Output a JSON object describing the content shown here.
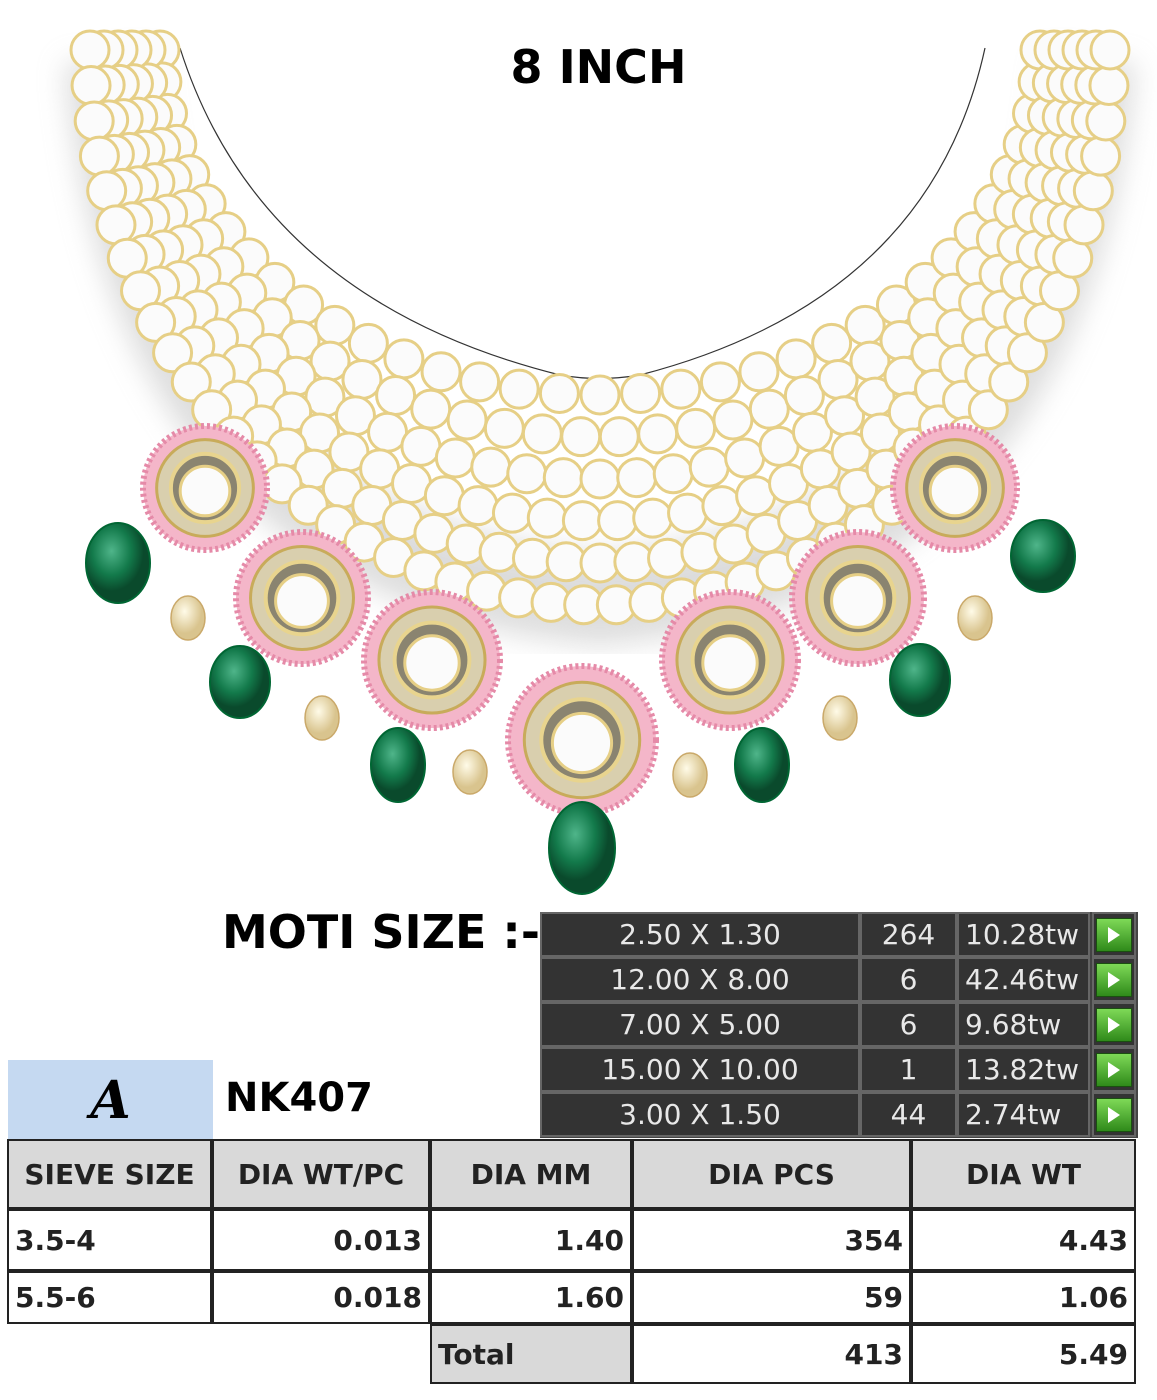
{
  "title": "8 INCH",
  "moti": {
    "label": "MOTI SIZE :-",
    "rows": [
      [
        "2.50 X 1.30",
        "264",
        "10.28tw"
      ],
      [
        "12.00 X 8.00",
        "6",
        "42.46tw"
      ],
      [
        "7.00 X 5.00",
        "6",
        "9.68tw"
      ],
      [
        "15.00 X 10.00",
        "1",
        "13.82tw"
      ],
      [
        "3.00 X 1.50",
        "44",
        "2.74tw"
      ]
    ]
  },
  "logo": "A",
  "code": "NK407",
  "table": {
    "header": [
      "SIEVE SIZE",
      "DIA WT/PC",
      "DIA MM",
      "DIA PCS",
      "DIA WT"
    ],
    "rows": [
      [
        "3.5-4",
        "0.013",
        "1.40",
        "354",
        "4.43"
      ],
      [
        "5.5-6",
        "0.018",
        "1.60",
        "59",
        "1.06"
      ]
    ],
    "total": [
      "Total",
      "413",
      "5.49"
    ]
  }
}
